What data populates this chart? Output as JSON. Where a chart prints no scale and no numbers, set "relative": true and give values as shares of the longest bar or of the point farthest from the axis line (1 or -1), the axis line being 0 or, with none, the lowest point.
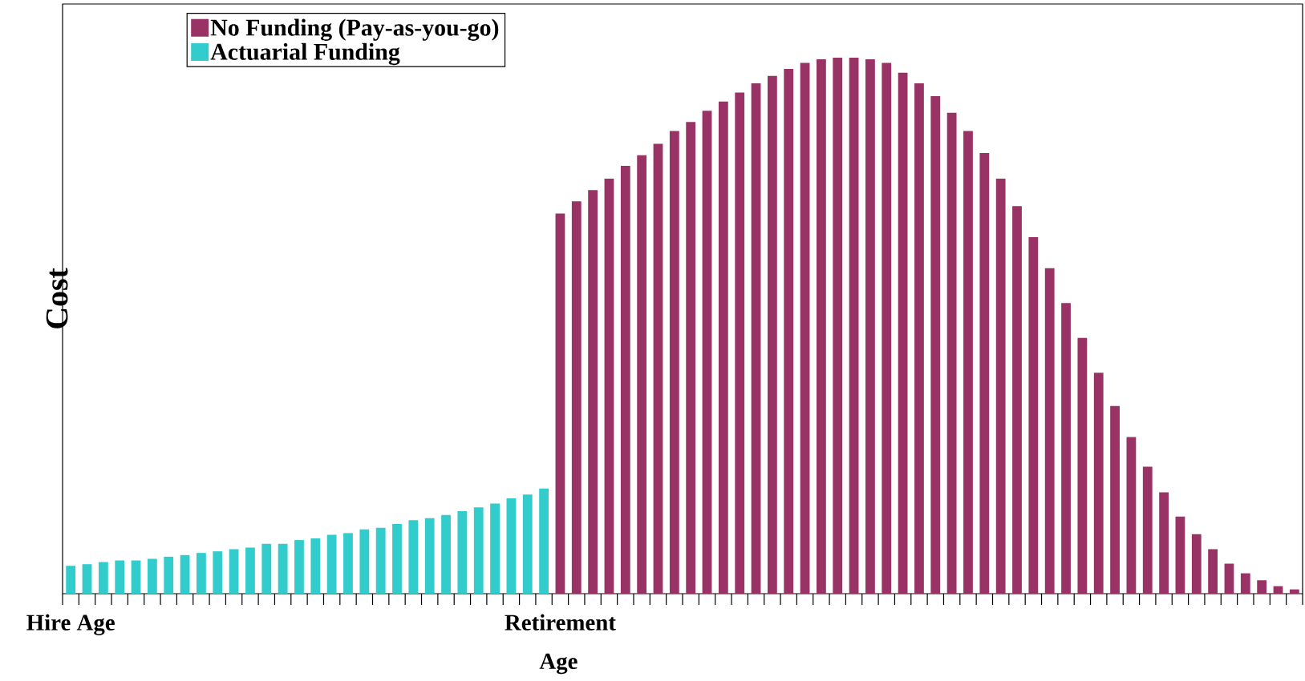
{
  "chart_data": {
    "type": "bar",
    "relative": true,
    "xlabel": "Age",
    "ylabel": "Cost",
    "legend": "top left",
    "categories": [
      "Hire Age",
      null,
      null,
      null,
      null,
      null,
      null,
      null,
      null,
      null,
      null,
      null,
      null,
      null,
      null,
      null,
      null,
      null,
      null,
      null,
      null,
      null,
      null,
      null,
      null,
      null,
      null,
      null,
      null,
      null,
      "Retirement",
      null,
      null,
      null,
      null,
      null,
      null,
      null,
      null,
      null,
      null,
      null,
      null,
      null,
      null,
      null,
      null,
      null,
      null,
      null,
      null,
      null,
      null,
      null,
      null,
      null,
      null,
      null,
      null,
      null,
      null,
      null,
      null,
      null,
      null,
      null,
      null,
      null,
      null,
      null,
      null,
      null,
      null,
      null,
      null,
      null
    ],
    "series": [
      {
        "name": "No Funding (Pay-as-you-go)",
        "color": "#993366",
        "values": [
          null,
          null,
          null,
          null,
          null,
          null,
          null,
          null,
          null,
          null,
          null,
          null,
          null,
          null,
          null,
          null,
          null,
          null,
          null,
          null,
          null,
          null,
          null,
          null,
          null,
          null,
          null,
          null,
          null,
          null,
          0.709,
          0.732,
          0.753,
          0.774,
          0.798,
          0.818,
          0.839,
          0.863,
          0.88,
          0.901,
          0.918,
          0.935,
          0.952,
          0.966,
          0.979,
          0.99,
          0.997,
          1.0,
          1.0,
          0.997,
          0.99,
          0.972,
          0.952,
          0.928,
          0.897,
          0.863,
          0.822,
          0.774,
          0.723,
          0.665,
          0.607,
          0.542,
          0.477,
          0.412,
          0.35,
          0.292,
          0.237,
          0.189,
          0.144,
          0.111,
          0.083,
          0.056,
          0.038,
          0.025,
          0.014,
          0.008
        ]
      },
      {
        "name": "Actuarial Funding",
        "color": "#33cccc",
        "values": [
          0.052,
          0.055,
          0.059,
          0.062,
          0.062,
          0.065,
          0.069,
          0.072,
          0.076,
          0.079,
          0.083,
          0.086,
          0.093,
          0.093,
          0.1,
          0.103,
          0.11,
          0.113,
          0.12,
          0.123,
          0.13,
          0.137,
          0.141,
          0.147,
          0.154,
          0.161,
          0.168,
          0.178,
          0.185,
          0.196,
          null,
          null,
          null,
          null,
          null,
          null,
          null,
          null,
          null,
          null,
          null,
          null,
          null,
          null,
          null,
          null,
          null,
          null,
          null,
          null,
          null,
          null,
          null,
          null,
          null,
          null,
          null,
          null,
          null,
          null,
          null,
          null,
          null,
          null,
          null,
          null,
          null,
          null,
          null,
          null,
          null,
          null,
          null,
          null,
          null,
          null
        ]
      }
    ]
  }
}
